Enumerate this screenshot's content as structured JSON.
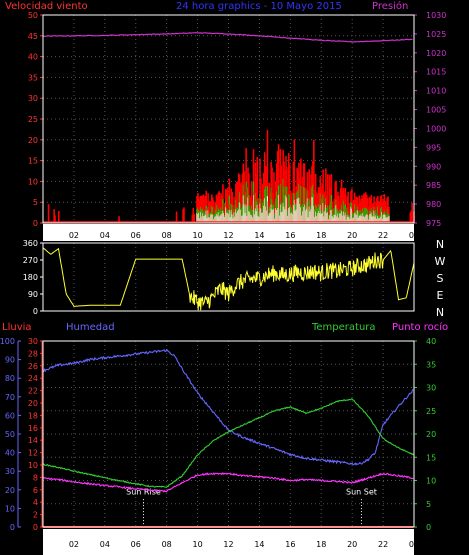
{
  "title": "24 hora graphics - 10 Mayo 2015",
  "chart_data": [
    {
      "type": "line",
      "name": "wind-pressure",
      "left_label": "Velocidad viento",
      "right_label": "Presión",
      "y_left": {
        "range": [
          0,
          50
        ],
        "ticks": [
          "0",
          "5",
          "10",
          "15",
          "20",
          "25",
          "30",
          "35",
          "40",
          "45",
          "50"
        ]
      },
      "y_right": {
        "range": [
          975,
          1030
        ],
        "ticks": [
          "975",
          "980",
          "985",
          "990",
          "995",
          "1000",
          "1005",
          "1010",
          "1015",
          "1020",
          "1025",
          "1030"
        ]
      },
      "x_ticks": [
        "02",
        "04",
        "06",
        "08",
        "10",
        "12",
        "14",
        "16",
        "18",
        "20",
        "22",
        "00"
      ],
      "x_range_hours": [
        0,
        24
      ],
      "series": [
        {
          "name": "Presión",
          "color": "#cc33cc",
          "axis": "right",
          "x": [
            0,
            2,
            4,
            6,
            8,
            10,
            12,
            14,
            16,
            18,
            20,
            22,
            24
          ],
          "y": [
            1024.4,
            1024.5,
            1024.6,
            1024.8,
            1025.0,
            1025.3,
            1025.0,
            1024.5,
            1023.9,
            1023.3,
            1022.9,
            1023.2,
            1023.6
          ]
        }
      ],
      "wind_color": "#ff0000",
      "gust_color": "#00cc00",
      "avg_color": "#ffffff"
    },
    {
      "type": "scatter",
      "name": "wind-direction",
      "y_ticks": [
        "0",
        "90",
        "180",
        "270",
        "360"
      ],
      "y_range": [
        0,
        360
      ],
      "right_labels": [
        "N",
        "W",
        "S",
        "E",
        "N"
      ],
      "color": "#ffff33",
      "x": [
        0.0,
        0.5,
        1.0,
        1.5,
        2.0,
        3.0,
        4.0,
        5.0,
        6.0,
        7.0,
        8.0,
        9.0,
        9.5,
        10.0,
        10.5,
        11.0,
        11.5,
        12.0,
        12.5,
        13.0,
        13.5,
        14.0,
        14.5,
        15.0,
        15.5,
        16.0,
        16.5,
        17.0,
        17.5,
        18.0,
        18.5,
        19.0,
        19.5,
        20.0,
        20.5,
        21.0,
        21.5,
        22.0,
        22.5,
        23.0,
        23.5,
        24.0
      ],
      "y": [
        335,
        300,
        330,
        90,
        25,
        30,
        30,
        30,
        275,
        275,
        275,
        275,
        80,
        50,
        40,
        75,
        120,
        90,
        140,
        160,
        170,
        175,
        190,
        200,
        190,
        195,
        205,
        200,
        210,
        200,
        215,
        210,
        220,
        225,
        240,
        245,
        270,
        270,
        320,
        60,
        70,
        255
      ]
    },
    {
      "type": "line",
      "name": "rain-humidity-temperature-dewpoint",
      "labels": {
        "lluvia": "Lluvia",
        "humedad": "Humedad",
        "temperatura": "Temperatura",
        "punto_rocio": "Punto rocío"
      },
      "y_rain": {
        "range": [
          0,
          30
        ],
        "ticks": [
          "0",
          "2",
          "4",
          "6",
          "8",
          "10",
          "12",
          "14",
          "16",
          "18",
          "20",
          "22",
          "24",
          "26",
          "28",
          "30"
        ]
      },
      "y_humidity": {
        "range": [
          0,
          100
        ],
        "ticks": [
          "0",
          "10",
          "20",
          "30",
          "40",
          "50",
          "60",
          "70",
          "80",
          "90",
          "100"
        ]
      },
      "y_temperature": {
        "range": [
          0,
          40
        ],
        "ticks": [
          "0",
          "5",
          "10",
          "15",
          "20",
          "25",
          "30",
          "35",
          "40"
        ]
      },
      "x_ticks": [
        "02",
        "04",
        "06",
        "08",
        "10",
        "12",
        "14",
        "16",
        "18",
        "20",
        "22",
        "00"
      ],
      "x_range_hours": [
        0,
        24
      ],
      "annotations": [
        {
          "label": "Sun Rise",
          "x": 6.5
        },
        {
          "label": "Sun Set",
          "x": 20.6
        }
      ],
      "series": [
        {
          "name": "Humedad",
          "color": "#6666ff",
          "axis": "humidity",
          "x": [
            0,
            1,
            2,
            3,
            4,
            5,
            6,
            7,
            8,
            8.5,
            9,
            10,
            11,
            12,
            13,
            14,
            15,
            16,
            17,
            18,
            19,
            20,
            20.5,
            21,
            21.5,
            22,
            23,
            24
          ],
          "y": [
            84,
            87,
            88,
            90,
            91,
            92,
            93,
            94,
            95,
            92,
            85,
            72,
            62,
            52,
            48,
            45,
            42,
            39,
            37,
            36,
            35,
            34,
            34,
            36,
            40,
            55,
            65,
            74
          ]
        },
        {
          "name": "Temperatura",
          "color": "#33cc33",
          "axis": "temperature",
          "x": [
            0,
            1,
            2,
            3,
            4,
            5,
            6,
            7,
            8,
            9,
            10,
            11,
            12,
            13,
            14,
            15,
            16,
            17,
            18,
            19,
            20,
            21,
            22,
            23,
            24
          ],
          "y": [
            13.5,
            12.8,
            12.0,
            11.3,
            10.6,
            9.9,
            9.3,
            8.7,
            8.6,
            11.0,
            15.5,
            18.5,
            20.5,
            22.0,
            23.5,
            25.0,
            25.8,
            24.5,
            25.5,
            27.0,
            27.5,
            24.0,
            19.0,
            17.0,
            15.5
          ]
        },
        {
          "name": "Punto rocío",
          "color": "#ff33ff",
          "axis": "temperature",
          "x": [
            0,
            1,
            2,
            3,
            4,
            5,
            6,
            7,
            8,
            9,
            10,
            11,
            12,
            13,
            14,
            15,
            16,
            17,
            18,
            19,
            20,
            21,
            22,
            23,
            24
          ],
          "y": [
            10.5,
            10.2,
            9.7,
            9.3,
            8.9,
            8.6,
            8.2,
            7.9,
            7.7,
            9.5,
            11.2,
            11.5,
            11.5,
            11.0,
            10.8,
            10.5,
            10.0,
            10.2,
            10.0,
            9.8,
            9.5,
            10.5,
            11.5,
            11.0,
            10.5
          ]
        },
        {
          "name": "Lluvia",
          "color": "#ff2222",
          "axis": "rain",
          "x": [
            0,
            24
          ],
          "y": [
            0,
            0
          ]
        }
      ]
    }
  ]
}
